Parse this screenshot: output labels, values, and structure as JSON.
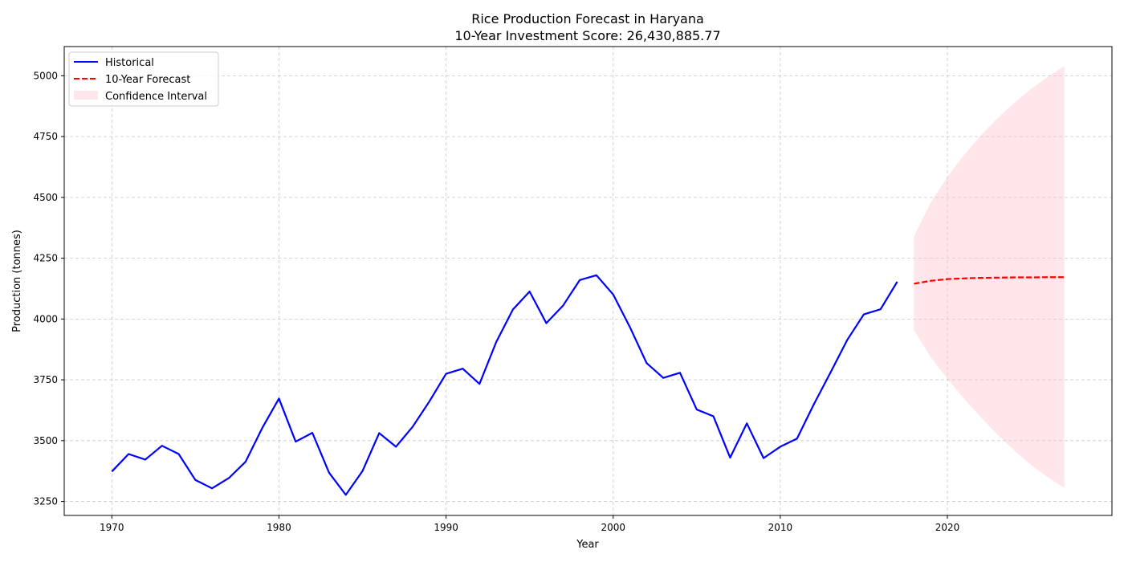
{
  "chart_data": {
    "type": "line",
    "title": "Rice Production Forecast in Haryana",
    "subtitle": "10-Year Investment Score: 26,430,885.77",
    "xlabel": "Year",
    "ylabel": "Production (tonnes)",
    "xlim": [
      1967.15,
      2029.85
    ],
    "ylim": [
      3192.5,
      5120
    ],
    "x_ticks": [
      1970,
      1980,
      1990,
      2000,
      2010,
      2020
    ],
    "y_ticks": [
      3250,
      3500,
      3750,
      4000,
      4250,
      4500,
      4750,
      5000
    ],
    "grid": true,
    "legend_position": "top-left",
    "legend": [
      {
        "label": "Historical",
        "style": "line",
        "color": "#0000ff",
        "dash": false
      },
      {
        "label": "10-Year Forecast",
        "style": "line",
        "color": "#ff0000",
        "dash": true
      },
      {
        "label": "Confidence Interval",
        "style": "patch",
        "color": "#ffc0cb"
      }
    ],
    "series": [
      {
        "name": "Historical",
        "color": "#0000ff",
        "x": [
          1970,
          1971,
          1972,
          1973,
          1974,
          1975,
          1976,
          1977,
          1978,
          1979,
          1980,
          1981,
          1982,
          1983,
          1984,
          1985,
          1986,
          1987,
          1988,
          1989,
          1990,
          1991,
          1992,
          1993,
          1994,
          1995,
          1996,
          1997,
          1998,
          1999,
          2000,
          2001,
          2002,
          2003,
          2004,
          2005,
          2006,
          2007,
          2008,
          2009,
          2010,
          2011,
          2012,
          2013,
          2014,
          2015,
          2016,
          2017
        ],
        "y": [
          3373,
          3445,
          3422,
          3479,
          3445,
          3338,
          3304,
          3346,
          3413,
          3552,
          3673,
          3496,
          3532,
          3368,
          3277,
          3375,
          3531,
          3475,
          3557,
          3661,
          3775,
          3796,
          3733,
          3905,
          4039,
          4113,
          3983,
          4055,
          4160,
          4180,
          4101,
          3967,
          3819,
          3758,
          3779,
          3628,
          3600,
          3430,
          3571,
          3428,
          3475,
          3508,
          3648,
          3779,
          3913,
          4019,
          4040,
          4153
        ]
      },
      {
        "name": "10-Year Forecast",
        "color": "#ff0000",
        "x": [
          2018,
          2019,
          2020,
          2021,
          2022,
          2023,
          2024,
          2025,
          2026,
          2027
        ],
        "y": [
          4145,
          4157,
          4164,
          4167,
          4169,
          4170,
          4171,
          4171,
          4172,
          4172
        ]
      }
    ],
    "confidence_interval": {
      "name": "Confidence Interval",
      "color": "#ffc0cb",
      "x": [
        2018,
        2019,
        2020,
        2021,
        2022,
        2023,
        2024,
        2025,
        2026,
        2027
      ],
      "upper": [
        4340,
        4478,
        4584,
        4675,
        4755,
        4825,
        4888,
        4945,
        4995,
        5040
      ],
      "lower": [
        3955,
        3843,
        3755,
        3672,
        3596,
        3525,
        3460,
        3400,
        3350,
        3305
      ]
    }
  }
}
